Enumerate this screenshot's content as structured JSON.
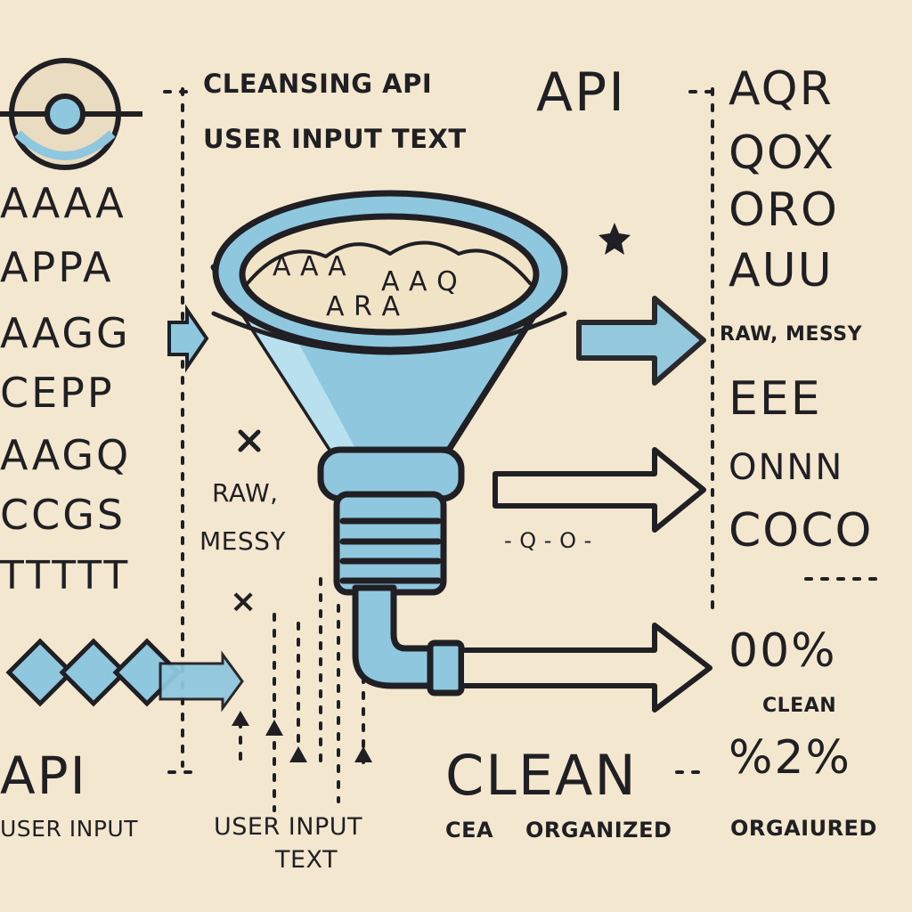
{
  "title_line1": "CLEANSING API",
  "title_line2": "USER INPUT TEXT",
  "top_api": "API",
  "left_rows": [
    "AAAA",
    "APPA",
    "AAGG",
    "CEPP",
    "AAGQ",
    "CCGS",
    "TTTTT"
  ],
  "right_rows": [
    "AQR",
    "QOX",
    "ORO",
    "AUU"
  ],
  "right_rows_lower": [
    "EEE",
    "ONNN",
    "COCO"
  ],
  "funnel_contents": [
    "A A A",
    "A A Q",
    "A R A"
  ],
  "raw_messy_right": "RAW, MESSY",
  "raw_messy_center": [
    "RAW,",
    "MESSY"
  ],
  "qo_label": "- Q - O -",
  "x_mark": "×",
  "percent_top": "00%",
  "clean_right": "CLEAN",
  "percent_bottom": "%2%",
  "api_bottom": "API",
  "user_input_left": "USER INPUT",
  "user_input_center": [
    "USER INPUT",
    "TEXT"
  ],
  "clean_big": "CLEAN",
  "cea_label": "CEA",
  "organized_center": "ORGANIZED",
  "organized_right": "ORGAIURED",
  "colors": {
    "background": "#f3e8cf",
    "ink": "#1f1f24",
    "accent_blue": "#8ec7de"
  }
}
